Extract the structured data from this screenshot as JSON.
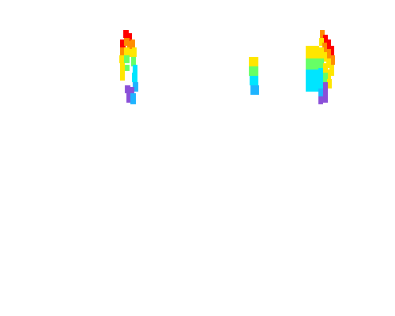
{
  "scene": {
    "background": "#ffffff",
    "palette": {
      "red": "#ff0000",
      "orange": "#ff8c00",
      "yellow": "#ffe600",
      "green": "#66ff66",
      "cyan": "#00e5ff",
      "sky": "#1eb4ff",
      "purple": "#8a4fd8"
    },
    "objects": [
      {
        "name": "rainbow-ribbon-left",
        "description_icon": "rainbow-ribbon"
      },
      {
        "name": "rainbow-ribbon-center",
        "description_icon": "rainbow-ribbon"
      },
      {
        "name": "rainbow-ribbon-right",
        "description_icon": "rainbow-ribbon"
      }
    ]
  }
}
